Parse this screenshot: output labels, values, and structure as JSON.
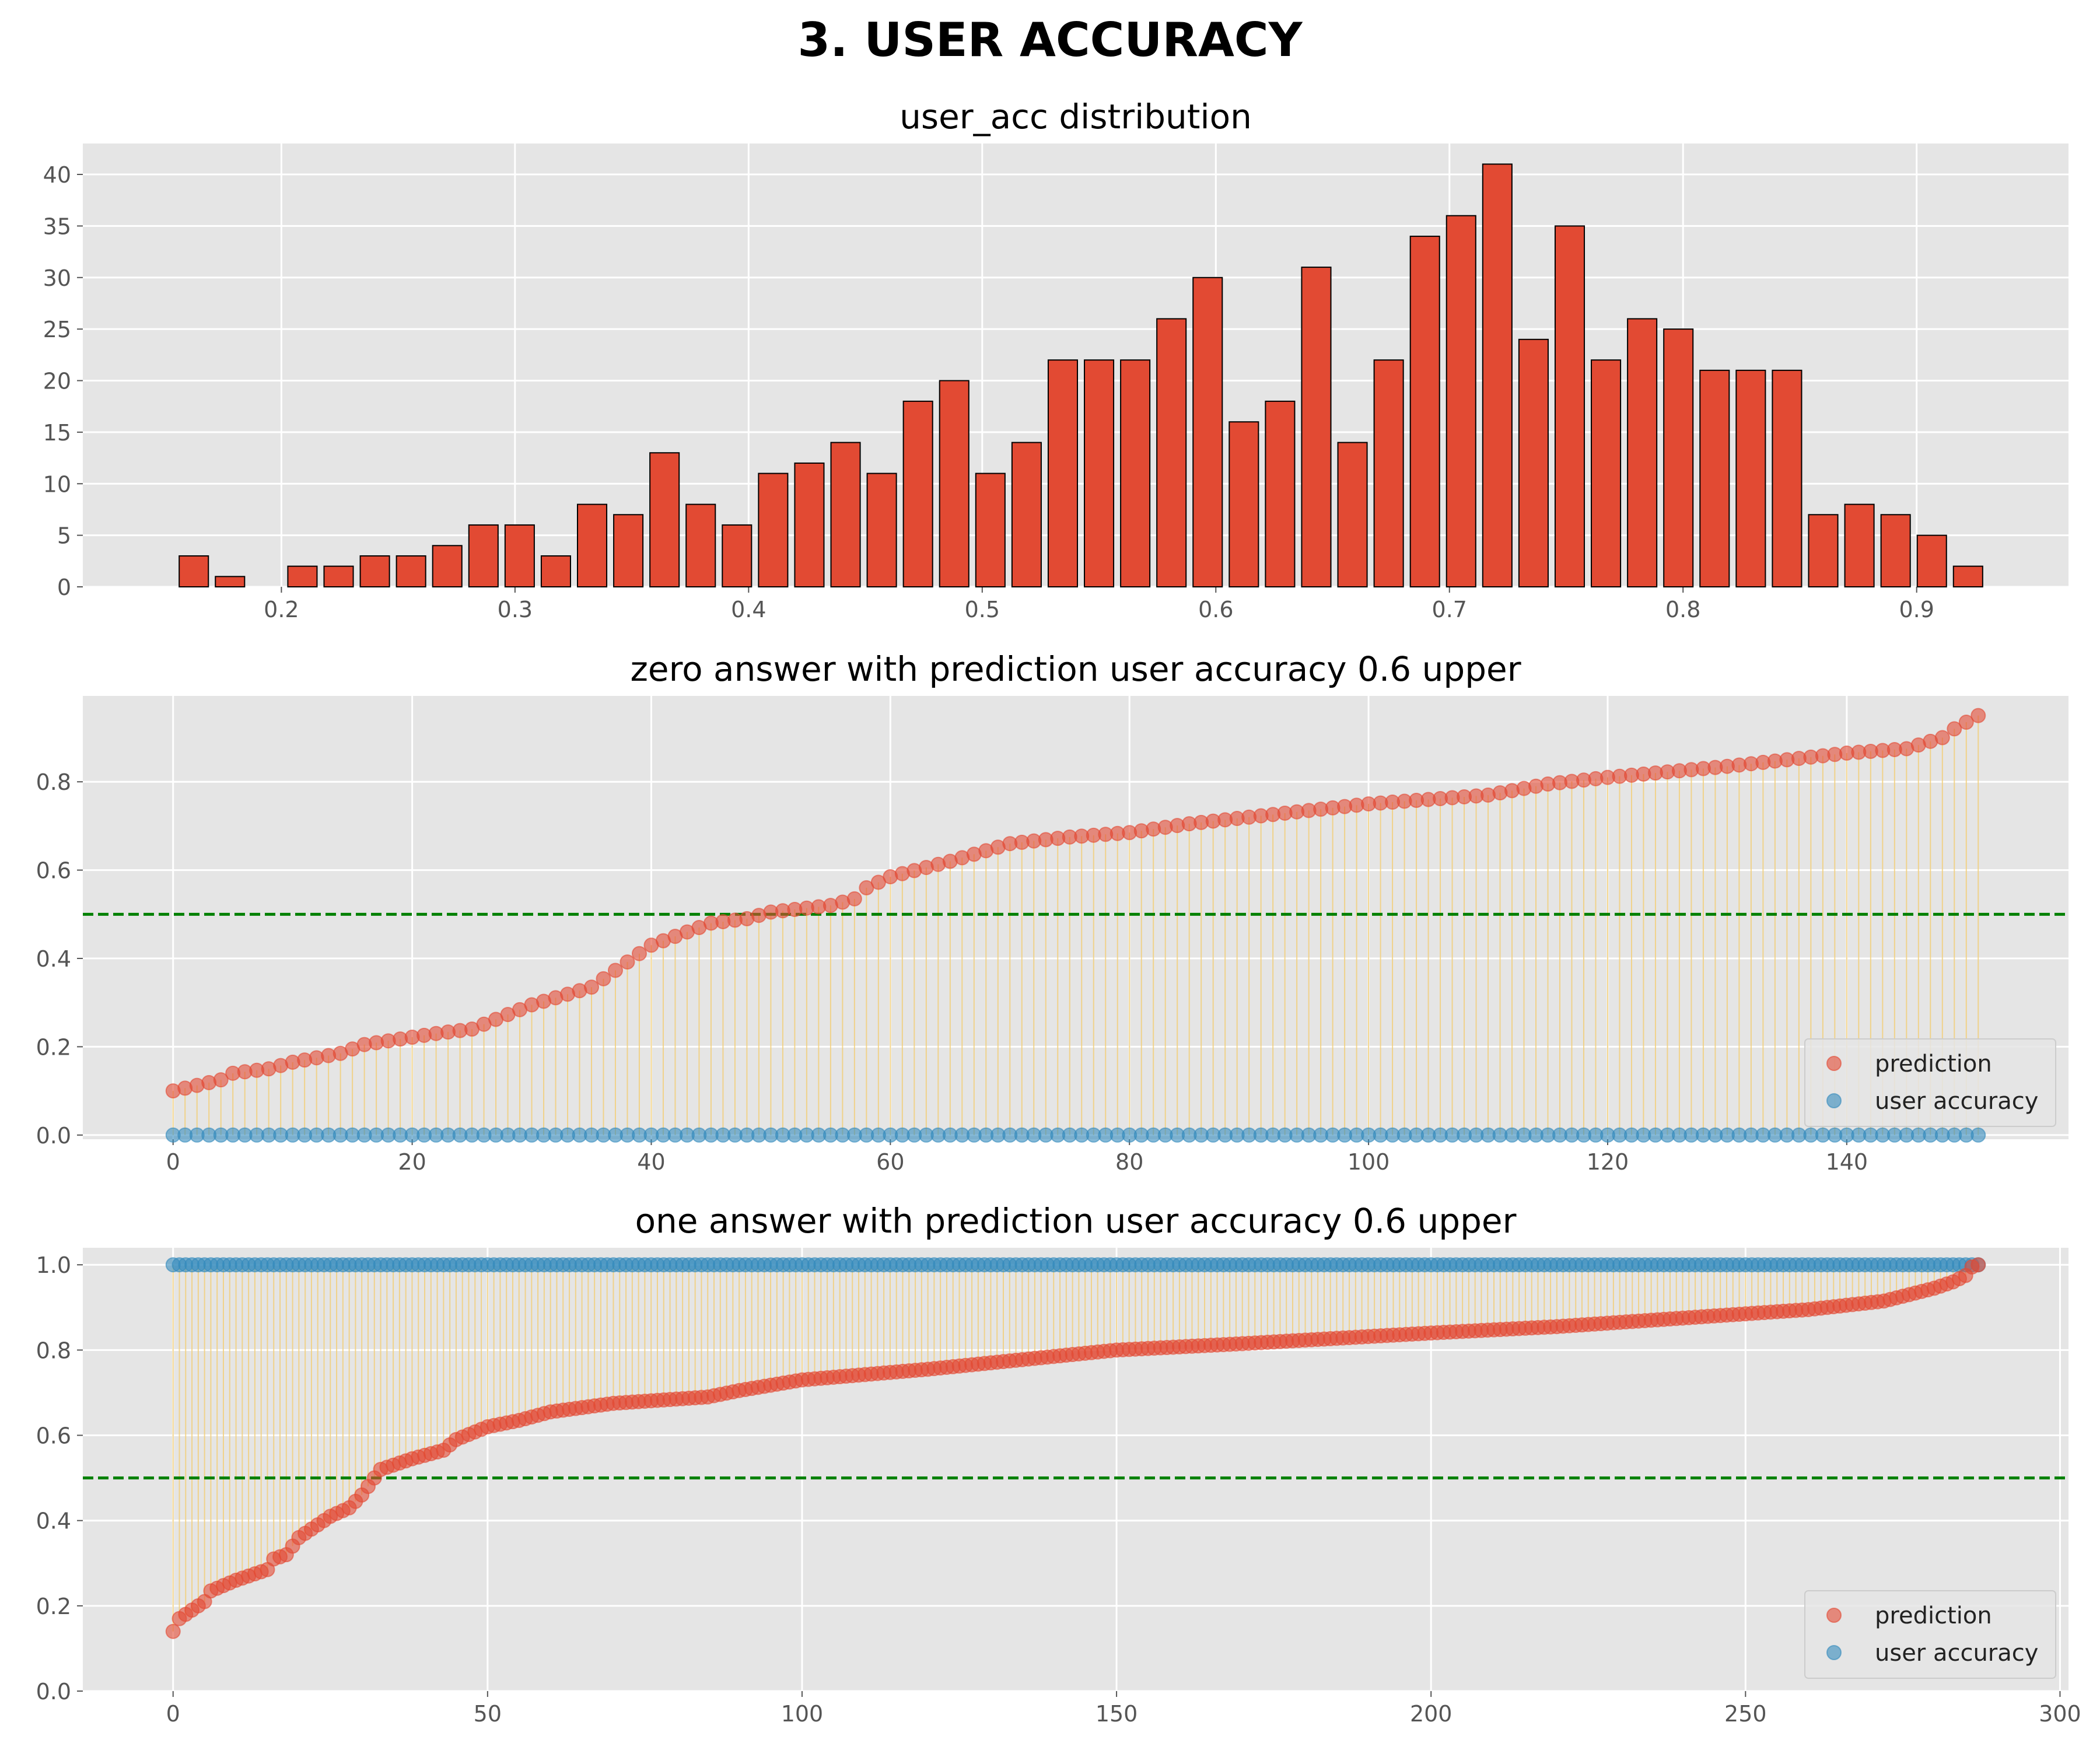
{
  "figure": {
    "suptitle": "3. USER ACCURACY"
  },
  "chart_data": [
    {
      "type": "bar",
      "title": "user_acc distribution",
      "xlabel": "",
      "ylabel": "",
      "xlim": [
        0.115,
        0.965
      ],
      "ylim": [
        0,
        43
      ],
      "xticks": [
        0.2,
        0.3,
        0.4,
        0.5,
        0.6,
        0.7,
        0.8,
        0.9
      ],
      "xtick_labels": [
        "0.2",
        "0.3",
        "0.4",
        "0.5",
        "0.6",
        "0.7",
        "0.8",
        "0.9"
      ],
      "yticks": [
        0,
        5,
        10,
        15,
        20,
        25,
        30,
        35,
        40
      ],
      "ytick_labels": [
        "0",
        "5",
        "10",
        "15",
        "20",
        "25",
        "30",
        "35",
        "40"
      ],
      "bar_width": 0.0125,
      "x": [
        0.1625,
        0.178,
        0.209,
        0.2245,
        0.24,
        0.2555,
        0.271,
        0.2865,
        0.302,
        0.3175,
        0.333,
        0.3485,
        0.364,
        0.3795,
        0.395,
        0.4105,
        0.426,
        0.4415,
        0.457,
        0.4725,
        0.488,
        0.5035,
        0.519,
        0.5345,
        0.55,
        0.5655,
        0.581,
        0.5965,
        0.612,
        0.6275,
        0.643,
        0.6585,
        0.674,
        0.6895,
        0.705,
        0.7205,
        0.736,
        0.7515,
        0.767,
        0.7825,
        0.798,
        0.8135,
        0.829,
        0.8445,
        0.86,
        0.8755,
        0.891,
        0.9065,
        0.922
      ],
      "values": [
        3,
        1,
        2,
        2,
        3,
        3,
        4,
        6,
        6,
        3,
        8,
        7,
        13,
        8,
        6,
        11,
        12,
        14,
        11,
        18,
        20,
        11,
        14,
        22,
        22,
        22,
        26,
        30,
        16,
        18,
        31,
        14,
        22,
        34,
        36,
        41,
        24,
        35,
        22,
        26,
        25,
        21,
        21,
        21,
        7,
        8,
        7,
        5,
        2
      ],
      "grid": true
    },
    {
      "type": "scatter",
      "title": "zero answer with prediction user accuracy 0.6 upper",
      "xlabel": "",
      "ylabel": "",
      "xlim": [
        -7.55,
        158.55
      ],
      "ylim": [
        -0.0095,
        0.9945
      ],
      "xticks": [
        0,
        20,
        40,
        60,
        80,
        100,
        120,
        140
      ],
      "xtick_labels": [
        "0",
        "20",
        "40",
        "60",
        "80",
        "100",
        "120",
        "140"
      ],
      "yticks": [
        0,
        0.2,
        0.4,
        0.6,
        0.8
      ],
      "ytick_labels": [
        "0.0",
        "0.2",
        "0.4",
        "0.6",
        "0.8"
      ],
      "threshold": 0.5,
      "n_points": 152,
      "prediction_anchors": [
        [
          0,
          0.1
        ],
        [
          4,
          0.125
        ],
        [
          5,
          0.14
        ],
        [
          8,
          0.15
        ],
        [
          10,
          0.165
        ],
        [
          14,
          0.185
        ],
        [
          16,
          0.205
        ],
        [
          22,
          0.23
        ],
        [
          25,
          0.24
        ],
        [
          30,
          0.295
        ],
        [
          35,
          0.335
        ],
        [
          40,
          0.43
        ],
        [
          45,
          0.48
        ],
        [
          48,
          0.49
        ],
        [
          50,
          0.505
        ],
        [
          55,
          0.52
        ],
        [
          57,
          0.535
        ],
        [
          58,
          0.56
        ],
        [
          60,
          0.585
        ],
        [
          65,
          0.62
        ],
        [
          70,
          0.66
        ],
        [
          75,
          0.675
        ],
        [
          80,
          0.685
        ],
        [
          85,
          0.705
        ],
        [
          90,
          0.72
        ],
        [
          100,
          0.75
        ],
        [
          110,
          0.77
        ],
        [
          115,
          0.795
        ],
        [
          120,
          0.81
        ],
        [
          130,
          0.835
        ],
        [
          140,
          0.865
        ],
        [
          145,
          0.875
        ],
        [
          148,
          0.9
        ],
        [
          149,
          0.92
        ],
        [
          150,
          0.935
        ],
        [
          151,
          0.95
        ]
      ],
      "user_accuracy_value": 0,
      "series": [
        {
          "name": "prediction",
          "color": "#E24A33"
        },
        {
          "name": "user accuracy",
          "color": "#348ABD"
        }
      ],
      "legend": "lower-right",
      "grid": true
    },
    {
      "type": "scatter",
      "title": "one answer with prediction user accuracy 0.6 upper",
      "xlabel": "",
      "ylabel": "",
      "xlim": [
        -14.35,
        301.35
      ],
      "ylim": [
        0,
        1.04
      ],
      "xticks": [
        0,
        50,
        100,
        150,
        200,
        250,
        300
      ],
      "xtick_labels": [
        "0",
        "50",
        "100",
        "150",
        "200",
        "250",
        "300"
      ],
      "yticks": [
        0,
        0.2,
        0.4,
        0.6,
        0.8,
        1.0
      ],
      "ytick_labels": [
        "0.0",
        "0.2",
        "0.4",
        "0.6",
        "0.8",
        "1.0"
      ],
      "threshold": 0.5,
      "n_points": 288,
      "prediction_anchors": [
        [
          0,
          0.14
        ],
        [
          1,
          0.17
        ],
        [
          3,
          0.19
        ],
        [
          5,
          0.21
        ],
        [
          6,
          0.235
        ],
        [
          10,
          0.26
        ],
        [
          15,
          0.285
        ],
        [
          16,
          0.31
        ],
        [
          18,
          0.32
        ],
        [
          20,
          0.36
        ],
        [
          25,
          0.41
        ],
        [
          28,
          0.43
        ],
        [
          30,
          0.46
        ],
        [
          32,
          0.5
        ],
        [
          33,
          0.52
        ],
        [
          38,
          0.545
        ],
        [
          43,
          0.565
        ],
        [
          45,
          0.59
        ],
        [
          50,
          0.62
        ],
        [
          55,
          0.635
        ],
        [
          60,
          0.655
        ],
        [
          70,
          0.675
        ],
        [
          85,
          0.69
        ],
        [
          90,
          0.705
        ],
        [
          100,
          0.73
        ],
        [
          120,
          0.755
        ],
        [
          150,
          0.8
        ],
        [
          170,
          0.815
        ],
        [
          200,
          0.84
        ],
        [
          220,
          0.855
        ],
        [
          240,
          0.875
        ],
        [
          260,
          0.895
        ],
        [
          272,
          0.915
        ],
        [
          276,
          0.93
        ],
        [
          280,
          0.945
        ],
        [
          283,
          0.96
        ],
        [
          285,
          0.975
        ],
        [
          286,
          0.995
        ],
        [
          287,
          1.0
        ]
      ],
      "user_accuracy_value": 1,
      "series": [
        {
          "name": "prediction",
          "color": "#E24A33"
        },
        {
          "name": "user accuracy",
          "color": "#348ABD"
        }
      ],
      "legend": "lower-right",
      "grid": true
    }
  ]
}
